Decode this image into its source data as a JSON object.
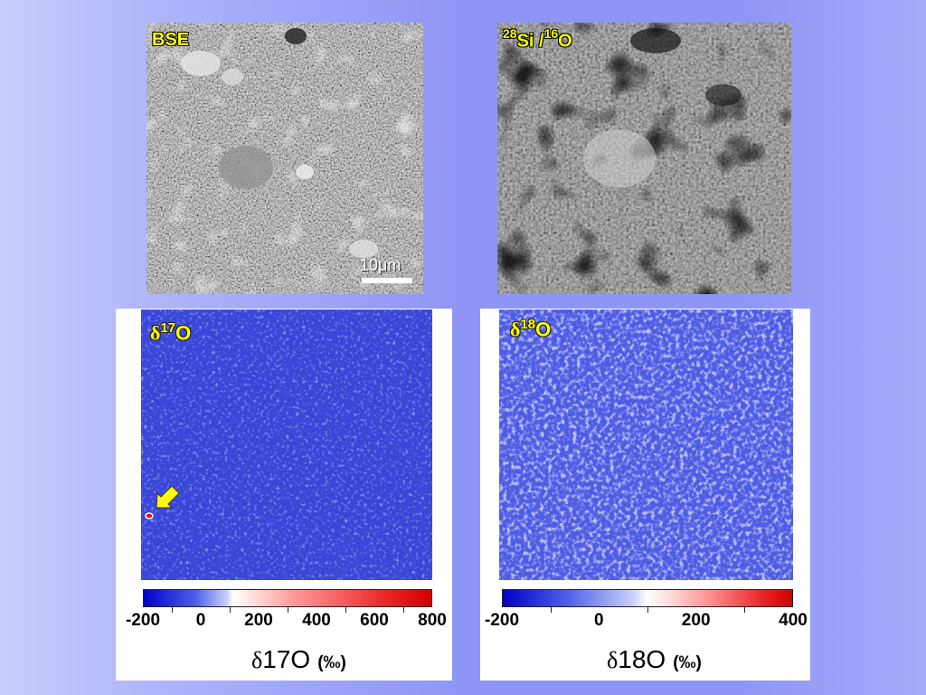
{
  "bse_panel": {
    "label": "BSE",
    "scalebar_label": "10μm"
  },
  "si_panel": {
    "label_mass1": "28",
    "label_el1": "Si /",
    "label_mass2": "16",
    "label_el2": "O"
  },
  "d17_panel": {
    "label_delta": "δ",
    "label_mass": "17",
    "label_el": "O",
    "colorbar": {
      "ticks": [
        "-200",
        "0",
        "200",
        "400",
        "600",
        "800"
      ],
      "min": -200,
      "max": 800
    },
    "axis_delta": "δ",
    "axis_iso": "17O",
    "axis_unit": "(‰)",
    "arrow_color": "#ffff00",
    "hotspot_color": "#ff0000"
  },
  "d18_panel": {
    "label_delta": "δ",
    "label_mass": "18",
    "label_el": "O",
    "colorbar": {
      "ticks": [
        "-200",
        "0",
        "200",
        "400"
      ],
      "min": -200,
      "max": 400
    },
    "axis_delta": "δ",
    "axis_iso": "18O",
    "axis_unit": "(‰)"
  },
  "colors": {
    "map_blue": "#3845d8",
    "low": "#0000c8",
    "mid": "#ffffff",
    "high": "#d80000",
    "label_yellow": "#ffff00"
  }
}
